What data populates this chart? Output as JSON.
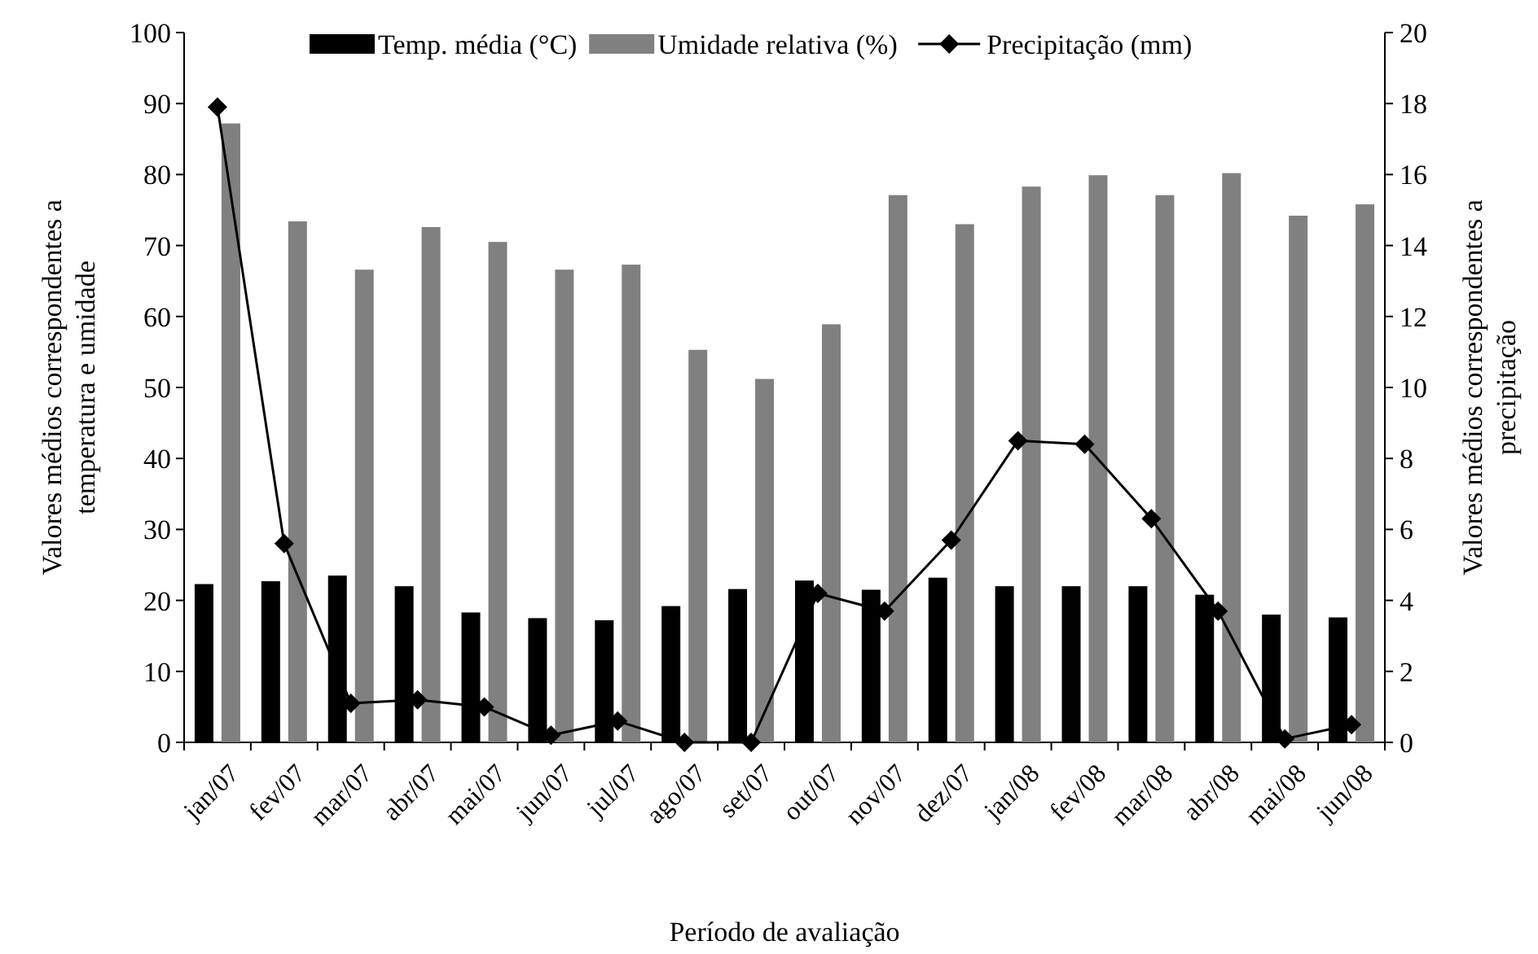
{
  "chart_data": {
    "type": "bar",
    "xlabel": "Período de avaliação",
    "ylabel": "Valores médios correspondentes a temperatura e umidade",
    "y2label": "Valores médios correspondentes a precipitação",
    "categories": [
      "jan/07",
      "fev/07",
      "mar/07",
      "abr/07",
      "mai/07",
      "jun/07",
      "jul/07",
      "ago/07",
      "set/07",
      "out/07",
      "nov/07",
      "dez/07",
      "jan/08",
      "fev/08",
      "mar/08",
      "abr/08",
      "mai/08",
      "jun/08"
    ],
    "series": [
      {
        "name": "Temp. média (°C)",
        "color": "#000000",
        "values": [
          22.3,
          22.7,
          23.5,
          22,
          18.3,
          17.5,
          17.2,
          19.2,
          21.6,
          22.8,
          21.5,
          23.2,
          22,
          22,
          22,
          20.8,
          18,
          17.6
        ]
      },
      {
        "name": "Umidade relativa (%)",
        "color": "#808080",
        "values": [
          87.2,
          73.4,
          66.6,
          72.6,
          70.5,
          66.6,
          67.3,
          55.3,
          51.2,
          58.9,
          77.1,
          73,
          78.3,
          79.9,
          77.1,
          80.2,
          74.2,
          75.8
        ]
      },
      {
        "name": "Precipitação (mm)",
        "type": "line",
        "axis": "y2",
        "color": "#000000",
        "marker": "diamond",
        "values": [
          17.9,
          5.6,
          1.1,
          1.2,
          1.0,
          0.2,
          0.6,
          0.0,
          0.0,
          4.2,
          3.7,
          5.7,
          8.5,
          8.4,
          6.3,
          3.7,
          0.1,
          0.5
        ]
      }
    ],
    "ylim": [
      0,
      100
    ],
    "yticks": [
      0,
      10,
      20,
      30,
      40,
      50,
      60,
      70,
      80,
      90,
      100
    ],
    "y2lim": [
      0,
      20
    ],
    "y2ticks": [
      0,
      2,
      4,
      6,
      8,
      10,
      12,
      14,
      16,
      18,
      20
    ],
    "grid": false,
    "legend": "top"
  }
}
